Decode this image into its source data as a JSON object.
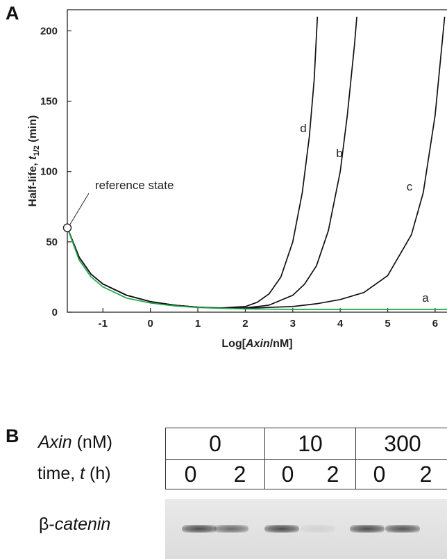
{
  "panel_a": {
    "letter": "A",
    "annotation": "reference state"
  },
  "chart_data": {
    "type": "line",
    "title": "",
    "xlabel": "Log[Axin/nM]",
    "ylabel": "Half-life, t1/2 (min)",
    "xlim": [
      -1.75,
      6.25
    ],
    "ylim": [
      0,
      215
    ],
    "xticks": [
      -1,
      0,
      1,
      2,
      3,
      4,
      5,
      6
    ],
    "yticks": [
      0,
      50,
      100,
      150,
      200
    ],
    "grid": false,
    "legend": "none",
    "annotations": [
      {
        "text": "reference state",
        "x": -1.75,
        "y": 60
      }
    ],
    "series": [
      {
        "name": "a",
        "color": "#1fa64a",
        "x": [
          -1.75,
          -1.5,
          -1.25,
          -1.0,
          -0.5,
          0.0,
          0.5,
          1.0,
          1.5,
          2.0,
          3.0,
          4.0,
          5.0,
          6.0,
          6.25
        ],
        "y": [
          60,
          37,
          25,
          18,
          10,
          6.5,
          4.5,
          3.3,
          2.7,
          2.3,
          2.0,
          2.0,
          2.0,
          2.0,
          2.0
        ]
      },
      {
        "name": "d",
        "color": "#111111",
        "x": [
          -1.75,
          -1.5,
          -1.25,
          -1.0,
          -0.5,
          0.0,
          0.5,
          1.0,
          1.5,
          2.0,
          2.25,
          2.5,
          2.75,
          3.0,
          3.2,
          3.35,
          3.45,
          3.52
        ],
        "y": [
          60,
          39,
          27,
          20,
          12,
          7.5,
          5,
          3.5,
          3,
          4,
          7,
          13,
          25,
          50,
          85,
          125,
          165,
          210
        ]
      },
      {
        "name": "b",
        "color": "#111111",
        "x": [
          -1.75,
          -1.5,
          -1.25,
          -1.0,
          -0.5,
          0.0,
          0.5,
          1.0,
          1.5,
          2.0,
          2.5,
          3.0,
          3.25,
          3.5,
          3.75,
          4.0,
          4.15,
          4.3,
          4.35
        ],
        "y": [
          60,
          39,
          27,
          20,
          12,
          7.5,
          5,
          3.5,
          2.8,
          3,
          5,
          12,
          20,
          33,
          58,
          100,
          140,
          190,
          210
        ]
      },
      {
        "name": "c",
        "color": "#111111",
        "x": [
          -1.75,
          -1.5,
          -1.25,
          -1.0,
          -0.5,
          0.0,
          0.5,
          1.0,
          1.5,
          2.0,
          3.0,
          3.5,
          4.0,
          4.5,
          5.0,
          5.5,
          5.75,
          6.0,
          6.2
        ],
        "y": [
          60,
          39,
          27,
          20,
          12,
          7.5,
          5,
          3.5,
          2.8,
          2.8,
          4,
          6,
          9,
          14,
          26,
          55,
          85,
          140,
          210
        ]
      }
    ]
  },
  "panel_b": {
    "letter": "B",
    "row_labels": {
      "axin_italic": "Axin",
      "axin_unit": " (nM)",
      "time_prefix": "time, ",
      "time_italic": "t",
      "time_unit": " (h)",
      "protein_prefix": "β-",
      "protein_italic": "catenin"
    },
    "axin_values": [
      "0",
      "10",
      "300"
    ],
    "time_values": [
      "0",
      "2",
      "0",
      "2",
      "0",
      "2"
    ],
    "band_intensity": [
      0.95,
      0.75,
      0.95,
      0.1,
      0.95,
      0.9
    ]
  }
}
